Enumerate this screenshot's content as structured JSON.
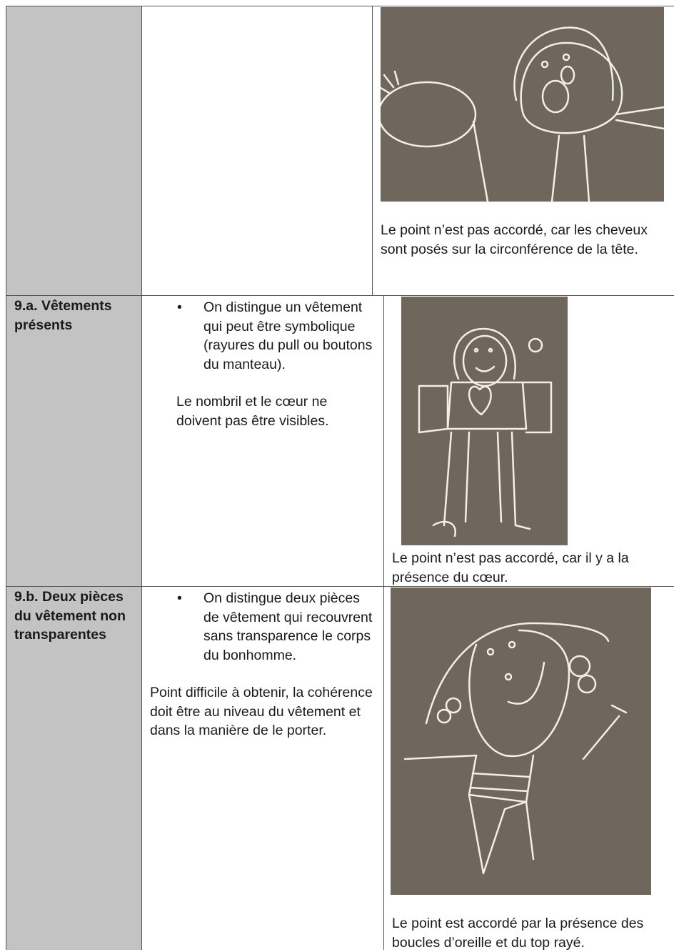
{
  "table": {
    "rows": [
      {
        "caption": "Le point n’est pas accordé, car les cheveux sont posés sur la circonférence de la tête."
      },
      {
        "criterion": "9.a. Vêtements présents",
        "bullet": "On distingue un vêtement qui peut être symbolique (rayures du pull ou boutons du manteau).",
        "note": "Le nombril et le cœur ne doivent pas être visibles.",
        "caption": "Le point n’est pas accordé, car il y a la présence du cœur."
      },
      {
        "criterion": "9.b. Deux pièces du vêtement non transparentes",
        "bullet": "On distingue deux pièces de vêtement qui recouvrent sans transparence le corps du bonhomme.",
        "note": "Point difficile à obtenir, la cohérence doit être au niveau du vêtement et dans la manière de le porter.",
        "caption": "Le point est accordé par la présence des boucles d’oreille et du top rayé."
      }
    ]
  }
}
